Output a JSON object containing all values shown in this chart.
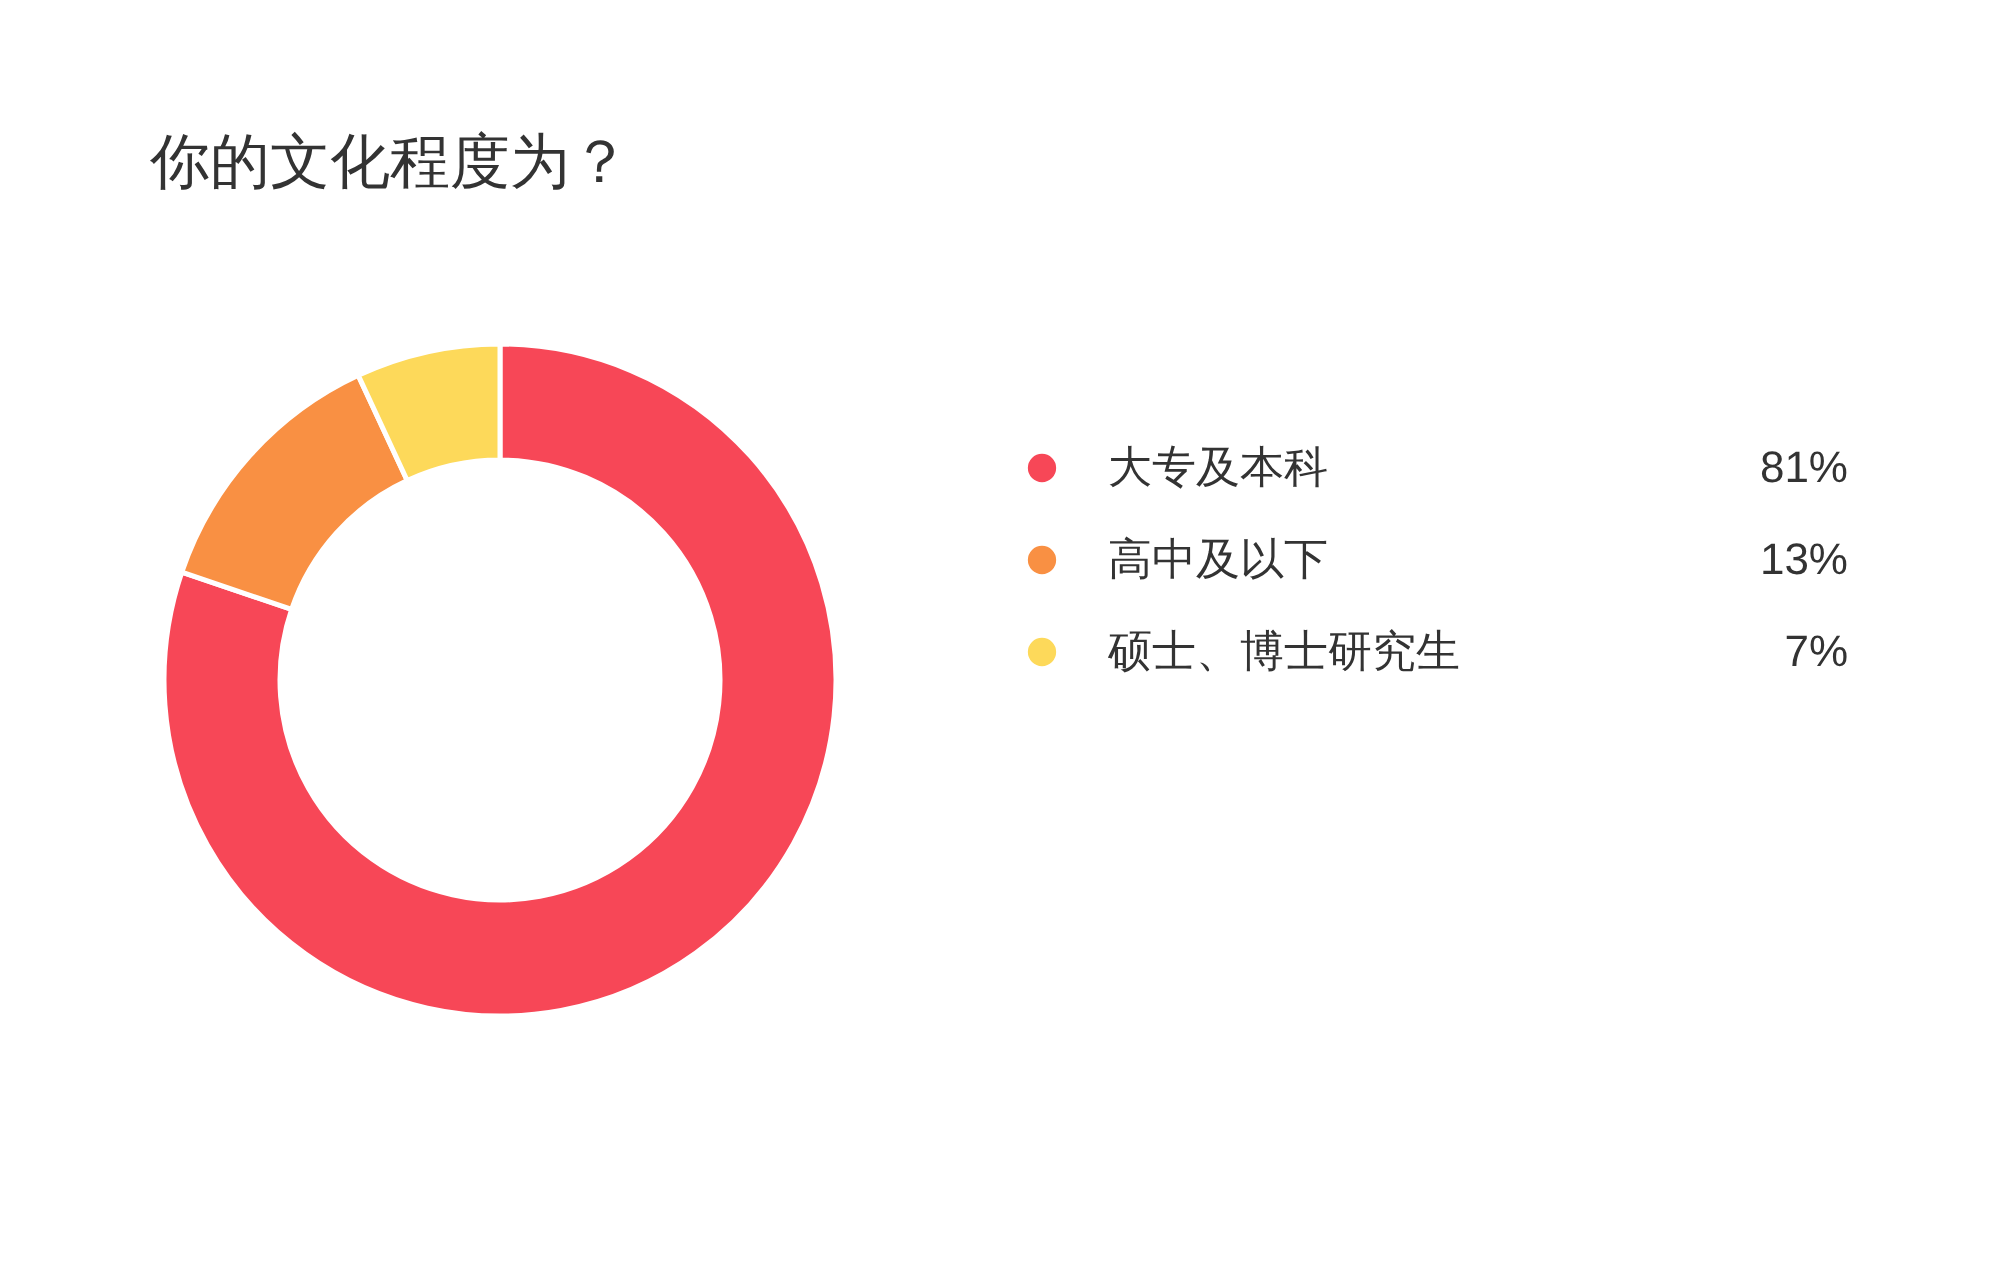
{
  "chart_data": {
    "type": "donut",
    "title": "你的文化程度为？",
    "categories": [
      "大专及本科",
      "高中及以下",
      "硕士、博士研究生"
    ],
    "values": [
      81,
      13,
      7
    ],
    "value_labels": [
      "81%",
      "13%",
      "7%"
    ],
    "colors": [
      "#f74757",
      "#f99043",
      "#fdd95a"
    ],
    "legend": "right"
  }
}
